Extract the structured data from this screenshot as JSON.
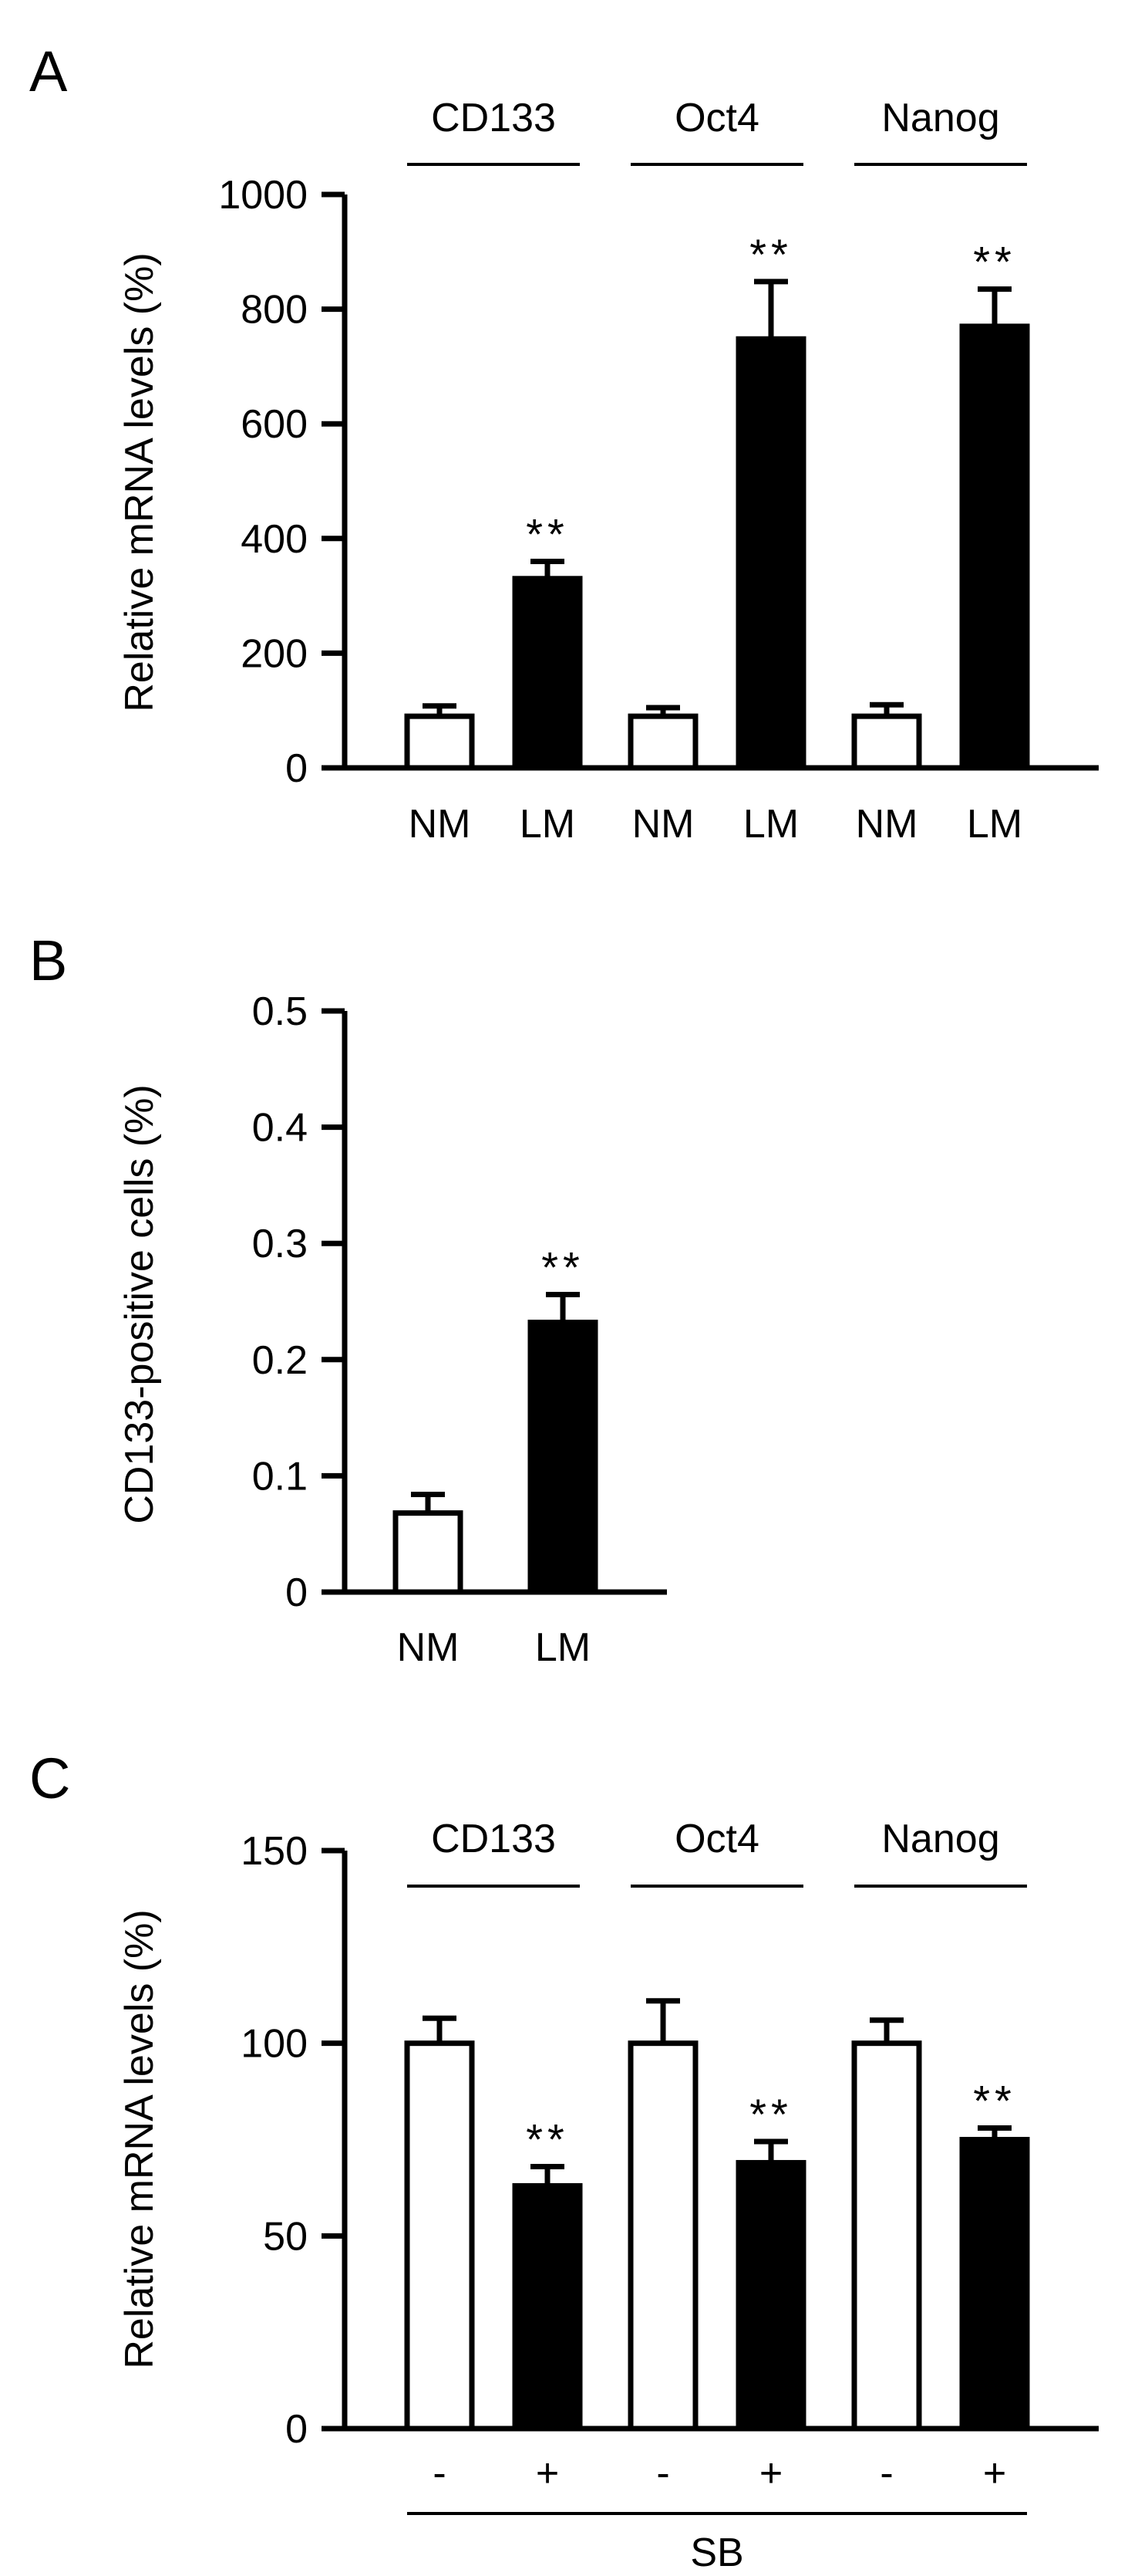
{
  "chart_data": [
    {
      "panel": "A",
      "type": "bar",
      "ylabel": "Relative mRNA levels (%)",
      "ylim": [
        0,
        1000
      ],
      "yticks": [
        0,
        200,
        400,
        600,
        800,
        1000
      ],
      "groups": [
        {
          "label": "CD133",
          "bars": [
            {
              "label": "NM",
              "value": 90,
              "error": 18,
              "fill": "open",
              "sig": ""
            },
            {
              "label": "LM",
              "value": 330,
              "error": 30,
              "fill": "solid",
              "sig": "**"
            }
          ]
        },
        {
          "label": "Oct4",
          "bars": [
            {
              "label": "NM",
              "value": 90,
              "error": 15,
              "fill": "open",
              "sig": ""
            },
            {
              "label": "LM",
              "value": 748,
              "error": 100,
              "fill": "solid",
              "sig": "**"
            }
          ]
        },
        {
          "label": "Nanog",
          "bars": [
            {
              "label": "NM",
              "value": 90,
              "error": 20,
              "fill": "open",
              "sig": ""
            },
            {
              "label": "LM",
              "value": 770,
              "error": 65,
              "fill": "solid",
              "sig": "**"
            }
          ]
        }
      ],
      "bottom_label": ""
    },
    {
      "panel": "B",
      "type": "bar",
      "ylabel": "CD133-positive cells (%)",
      "ylim": [
        0,
        0.5
      ],
      "yticks": [
        "0",
        "0.1",
        "0.2",
        "0.3",
        "0.4",
        "0.5"
      ],
      "groups": [
        {
          "label": "",
          "bars": [
            {
              "label": "NM",
              "value": 0.068,
              "error": 0.016,
              "fill": "open",
              "sig": ""
            },
            {
              "label": "LM",
              "value": 0.232,
              "error": 0.024,
              "fill": "solid",
              "sig": "**"
            }
          ]
        }
      ],
      "bottom_label": ""
    },
    {
      "panel": "C",
      "type": "bar",
      "ylabel": "Relative mRNA levels (%)",
      "ylim": [
        0,
        150
      ],
      "yticks": [
        0,
        50,
        100,
        150
      ],
      "groups": [
        {
          "label": "CD133",
          "bars": [
            {
              "label": "-",
              "value": 100,
              "error": 6.5,
              "fill": "open",
              "sig": ""
            },
            {
              "label": "+",
              "value": 63,
              "error": 5,
              "fill": "solid",
              "sig": "**"
            }
          ]
        },
        {
          "label": "Oct4",
          "bars": [
            {
              "label": "-",
              "value": 100,
              "error": 11,
              "fill": "open",
              "sig": ""
            },
            {
              "label": "+",
              "value": 69,
              "error": 5.5,
              "fill": "solid",
              "sig": "**"
            }
          ]
        },
        {
          "label": "Nanog",
          "bars": [
            {
              "label": "-",
              "value": 100,
              "error": 6,
              "fill": "open",
              "sig": ""
            },
            {
              "label": "+",
              "value": 75,
              "error": 3,
              "fill": "solid",
              "sig": "**"
            }
          ]
        }
      ],
      "bottom_label": "SB"
    }
  ]
}
